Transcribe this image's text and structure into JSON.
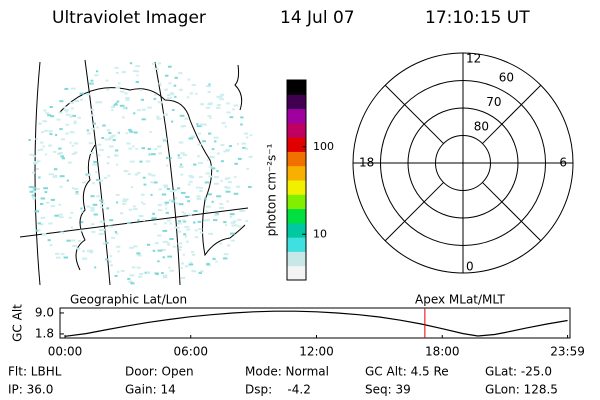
{
  "header": {
    "title": "Ultraviolet Imager",
    "date": "14 Jul 07",
    "time": "17:10:15 UT"
  },
  "chart_data": [
    {
      "type": "colorbar",
      "label": "photon cm⁻²s⁻¹",
      "log_scale": true,
      "ylim": [
        3,
        580
      ],
      "yticks": [
        10,
        100
      ],
      "colors": [
        "#f4f4f4",
        "#c8e8e8",
        "#40e0e0",
        "#00c8a0",
        "#00e040",
        "#80f000",
        "#f0f000",
        "#f8b000",
        "#f07000",
        "#e00000",
        "#c00060",
        "#a000a0",
        "#400050",
        "#000000"
      ]
    },
    {
      "type": "polar",
      "rlim": [
        90,
        50
      ],
      "rticks": [
        80,
        70,
        60
      ],
      "mlt_ticks": [
        12,
        6,
        0,
        18
      ],
      "grid_mlt": [
        3,
        9,
        15,
        21
      ]
    },
    {
      "type": "line",
      "title_left": "Geographic Lat/Lon",
      "title_right": "Apex MLat/MLT",
      "ylabel": "GC Alt",
      "x": [
        0,
        1,
        2,
        3,
        4,
        5,
        6,
        7,
        8,
        9,
        10,
        11,
        12,
        13,
        14,
        15,
        16,
        17,
        18,
        19,
        19.7,
        20.5,
        21,
        22,
        23,
        23.98
      ],
      "y": [
        1.0,
        1.9,
        3.3,
        4.6,
        5.8,
        6.8,
        7.7,
        8.4,
        9.0,
        9.4,
        9.6,
        9.6,
        9.4,
        9.0,
        8.4,
        7.6,
        6.5,
        5.2,
        3.6,
        1.9,
        1.1,
        1.6,
        2.3,
        3.8,
        5.2,
        6.4
      ],
      "color": "#000000",
      "marker_x": 17.171,
      "marker_color": "#e00000",
      "xlim": [
        0,
        24
      ],
      "ylim": [
        0.4,
        10.7
      ],
      "xticks": [
        {
          "value": 0,
          "label": "00:00"
        },
        {
          "value": 6,
          "label": "06:00"
        },
        {
          "value": 12,
          "label": "12:00"
        },
        {
          "value": 18,
          "label": "18:00"
        },
        {
          "value": 23.98,
          "label": "23:59"
        }
      ],
      "yticks": [
        {
          "value": 9,
          "label": "9.0"
        },
        1.8
      ]
    }
  ],
  "info": {
    "rows": [
      [
        "Flt: LBHL",
        "Door: Open",
        "Mode: Normal",
        "GC Alt: 4.5 Re",
        "GLat: -25.0"
      ],
      [
        "IP: 36.0",
        "Gain: 14",
        "Dsp:    -4.2",
        "Seq: 39",
        "GLon: 128.5"
      ]
    ]
  }
}
